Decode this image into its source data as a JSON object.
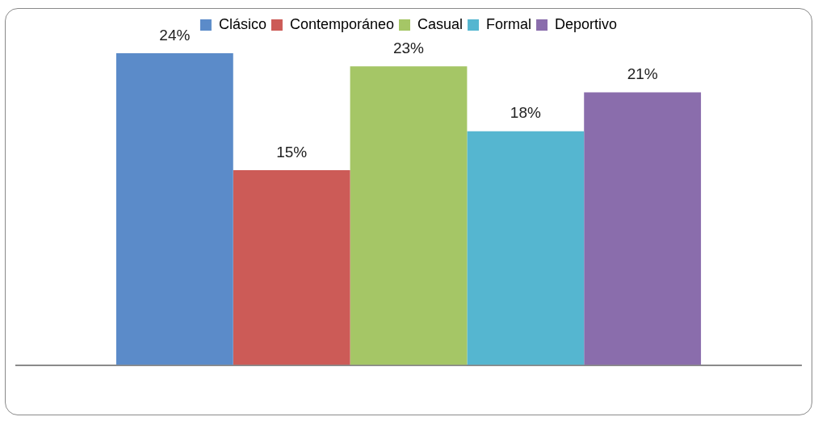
{
  "chart_data": {
    "type": "bar",
    "categories": [
      null
    ],
    "series": [
      {
        "name": "Clásico",
        "color": "#5b8bc9",
        "values": [
          24
        ],
        "value_labels": [
          "24%"
        ]
      },
      {
        "name": "Contemporáneo",
        "color": "#cc5b57",
        "values": [
          15
        ],
        "value_labels": [
          "15%"
        ]
      },
      {
        "name": "Casual",
        "color": "#a5c666",
        "values": [
          23
        ],
        "value_labels": [
          "23%"
        ]
      },
      {
        "name": "Formal",
        "color": "#55b6d0",
        "values": [
          18
        ],
        "value_labels": [
          "18%"
        ]
      },
      {
        "name": "Deportivo",
        "color": "#8a6dac",
        "values": [
          21
        ],
        "value_labels": [
          "21%"
        ]
      }
    ],
    "legend": "top",
    "grid": false
  }
}
